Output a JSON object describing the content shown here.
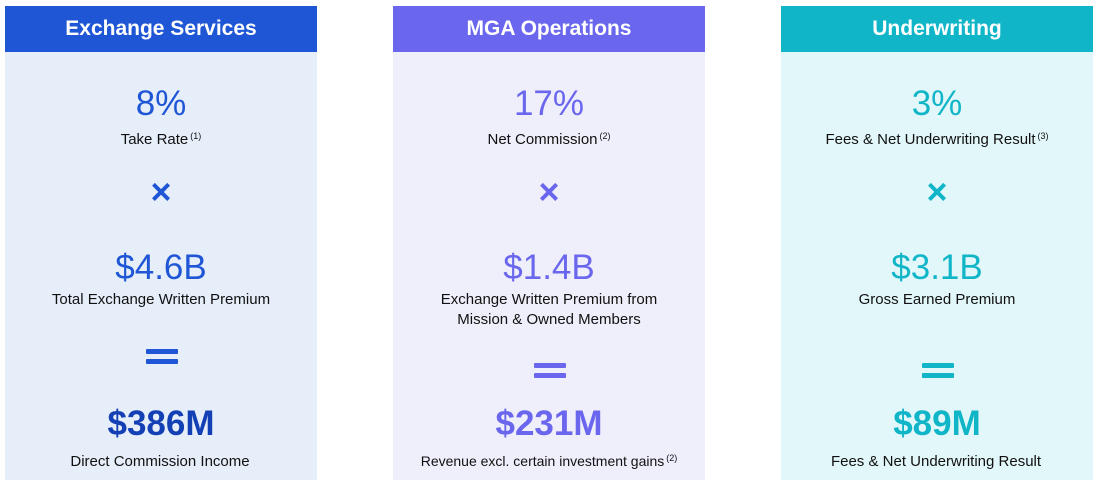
{
  "cards": [
    {
      "title": "Exchange Services",
      "rate": "8%",
      "rate_label": "Take Rate",
      "rate_note": "(1)",
      "multiply_symbol": "×",
      "base_value": "$4.6B",
      "base_label_line1": "Total Exchange Written Premium",
      "base_label_line2": "",
      "result_value": "$386M",
      "result_label": "Direct Commission Income",
      "result_note": "",
      "colors": {
        "header": "#1f56d6",
        "body": "#e6eef9"
      }
    },
    {
      "title": "MGA Operations",
      "rate": "17%",
      "rate_label": "Net Commission",
      "rate_note": "(2)",
      "multiply_symbol": "×",
      "base_value": "$1.4B",
      "base_label_line1": "Exchange Written Premium from",
      "base_label_line2": "Mission & Owned Members",
      "result_value": "$231M",
      "result_label": "Revenue excl. certain investment gains",
      "result_note": "(2)",
      "colors": {
        "header": "#6a67ee",
        "body": "#efeefb"
      }
    },
    {
      "title": "Underwriting",
      "rate": "3%",
      "rate_label": "Fees & Net Underwriting Result",
      "rate_note": "(3)",
      "multiply_symbol": "×",
      "base_value": "$3.1B",
      "base_label_line1": "Gross Earned Premium",
      "base_label_line2": "",
      "result_value": "$89M",
      "result_label": "Fees & Net Underwriting Result",
      "result_note": "",
      "colors": {
        "header": "#10b6c8",
        "body": "#e2f7fa"
      }
    }
  ]
}
